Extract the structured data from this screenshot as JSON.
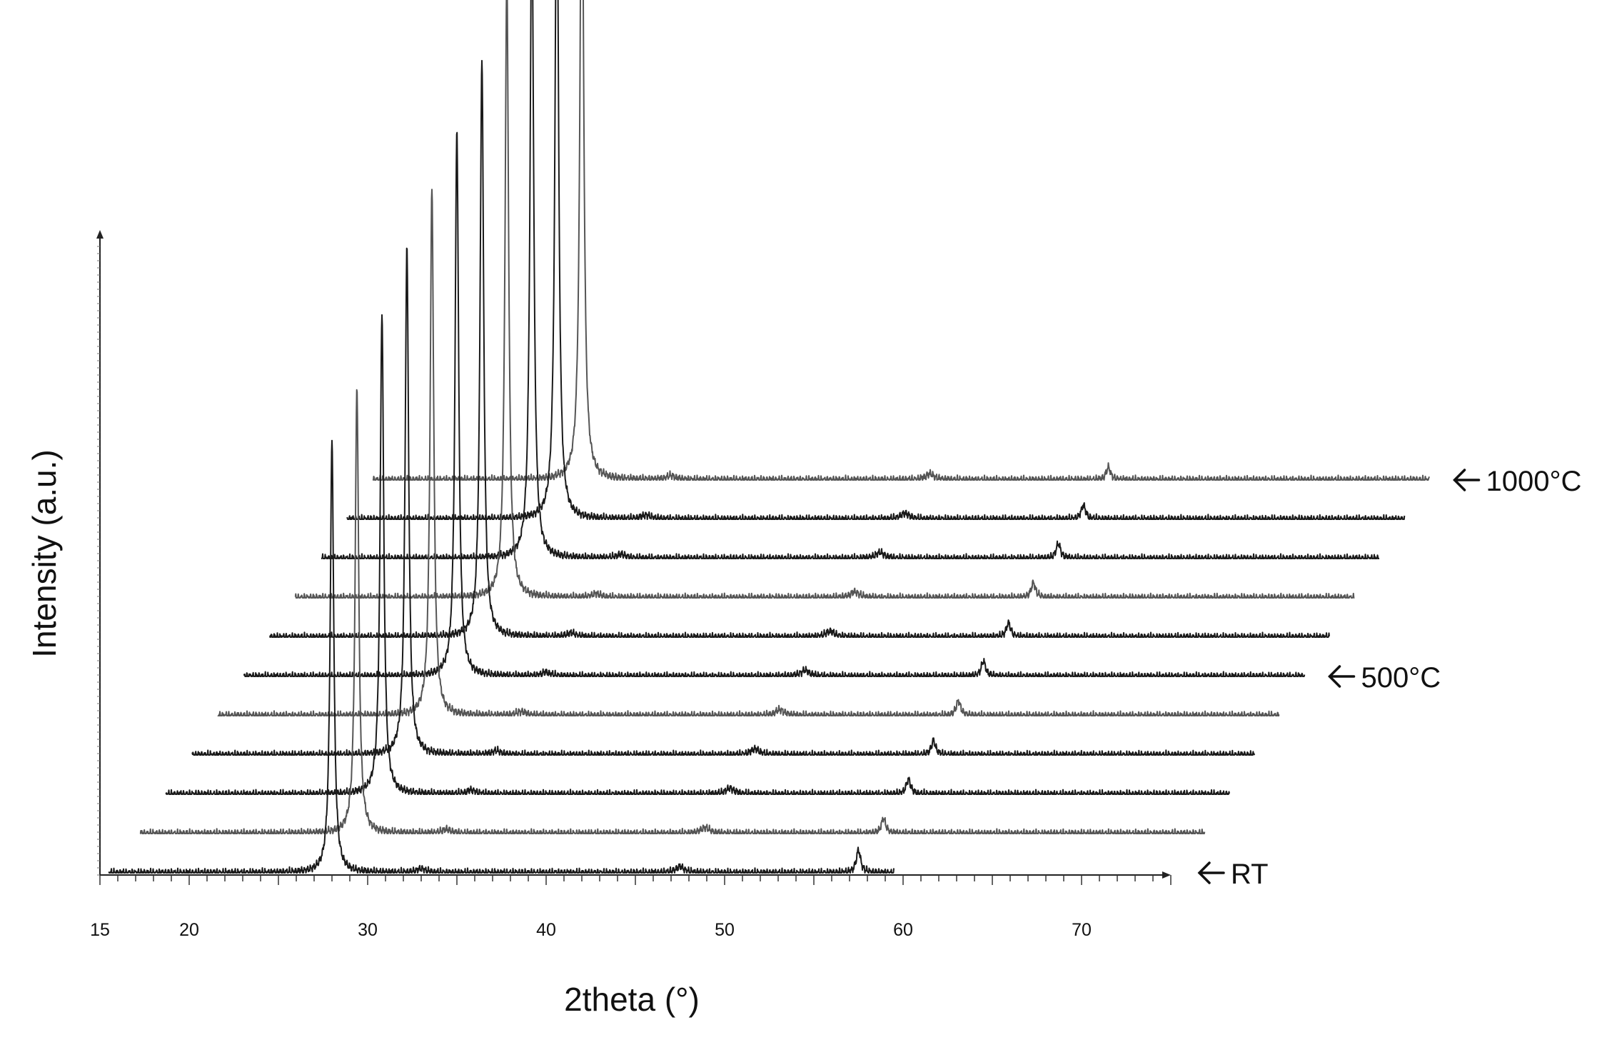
{
  "chart_data": {
    "type": "line",
    "subtype": "stacked-waterfall-offset",
    "xlabel": "2theta (°)",
    "ylabel": "Intensity (a.u.)",
    "xlim": [
      15,
      75
    ],
    "x_ticks": [
      15,
      20,
      30,
      40,
      50,
      60,
      70
    ],
    "grid": false,
    "series_count": 11,
    "main_peak_2theta": 28.0,
    "secondary_peak_2theta": 57.5,
    "peak_heights_relative": [
      0.85,
      0.88,
      0.95,
      1.0,
      1.04,
      1.08,
      1.14,
      1.23,
      1.31,
      1.35,
      1.38
    ],
    "secondary_peak_heights_relative": [
      0.045,
      0.03,
      0.03,
      0.028,
      0.03,
      0.03,
      0.028,
      0.03,
      0.03,
      0.028,
      0.025
    ],
    "order_note": "first series = bottom trace (RT), last series = top trace (1000°C)",
    "annotations": [
      {
        "text": "RT",
        "series_index": 0
      },
      {
        "text": "500°C",
        "series_index": 5
      },
      {
        "text": "1000°C",
        "series_index": 10
      }
    ]
  }
}
